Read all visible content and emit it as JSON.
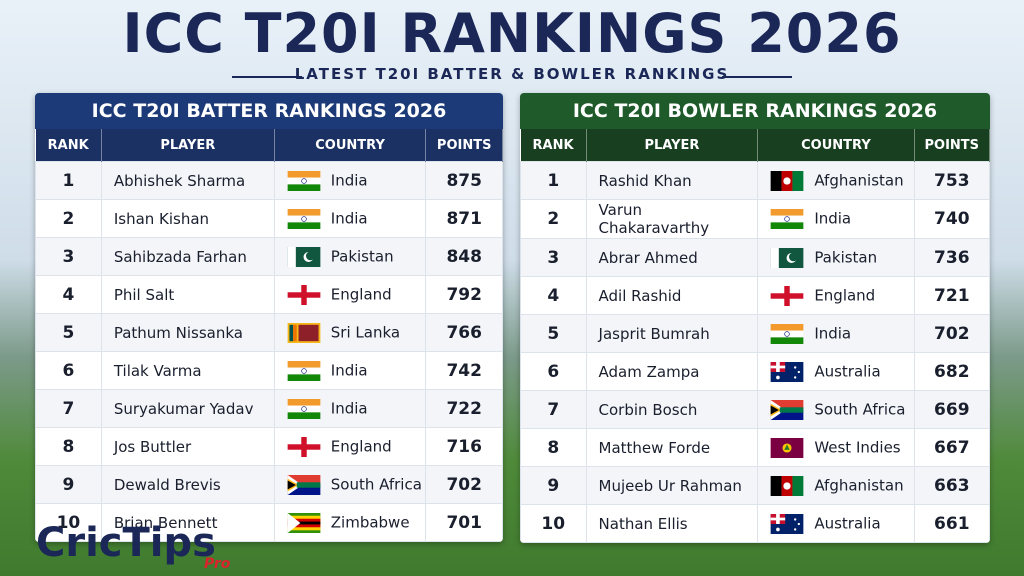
{
  "header": {
    "title": "ICC T20I RANKINGS 2026",
    "subtitle": "LATEST T20I BATTER & BOWLER RANKINGS"
  },
  "tables": [
    {
      "title": "ICC T20I BATTER RANKINGS 2026",
      "columns": [
        "RANK",
        "PLAYER",
        "COUNTRY",
        "POINTS"
      ],
      "rows": [
        [
          1,
          "Abhishek Sharma",
          "India",
          875
        ],
        [
          2,
          "Ishan Kishan",
          "India",
          871
        ],
        [
          3,
          "Sahibzada Farhan",
          "Pakistan",
          848
        ],
        [
          4,
          "Phil Salt",
          "England",
          792
        ],
        [
          5,
          "Pathum Nissanka",
          "Sri Lanka",
          766
        ],
        [
          6,
          "Tilak Varma",
          "India",
          742
        ],
        [
          7,
          "Suryakumar Yadav",
          "India",
          722
        ],
        [
          8,
          "Jos Buttler",
          "England",
          716
        ],
        [
          9,
          "Dewald Brevis",
          "South Africa",
          702
        ],
        [
          10,
          "Brian Bennett",
          "Zimbabwe",
          701
        ]
      ]
    },
    {
      "title": "ICC T20I BOWLER RANKINGS 2026",
      "columns": [
        "RANK",
        "PLAYER",
        "COUNTRY",
        "POINTS"
      ],
      "rows": [
        [
          1,
          "Rashid Khan",
          "Afghanistan",
          753
        ],
        [
          2,
          "Varun Chakaravarthy",
          "India",
          740
        ],
        [
          3,
          "Abrar Ahmed",
          "Pakistan",
          736
        ],
        [
          4,
          "Adil Rashid",
          "England",
          721
        ],
        [
          5,
          "Jasprit Bumrah",
          "India",
          702
        ],
        [
          6,
          "Adam Zampa",
          "Australia",
          682
        ],
        [
          7,
          "Corbin Bosch",
          "South Africa",
          669
        ],
        [
          8,
          "Matthew Forde",
          "West Indies",
          667
        ],
        [
          9,
          "Mujeeb Ur Rahman",
          "Afghanistan",
          663
        ],
        [
          10,
          "Nathan Ellis",
          "Australia",
          661
        ]
      ]
    }
  ],
  "logo": {
    "name": "CricTips",
    "tag": "Pro"
  }
}
